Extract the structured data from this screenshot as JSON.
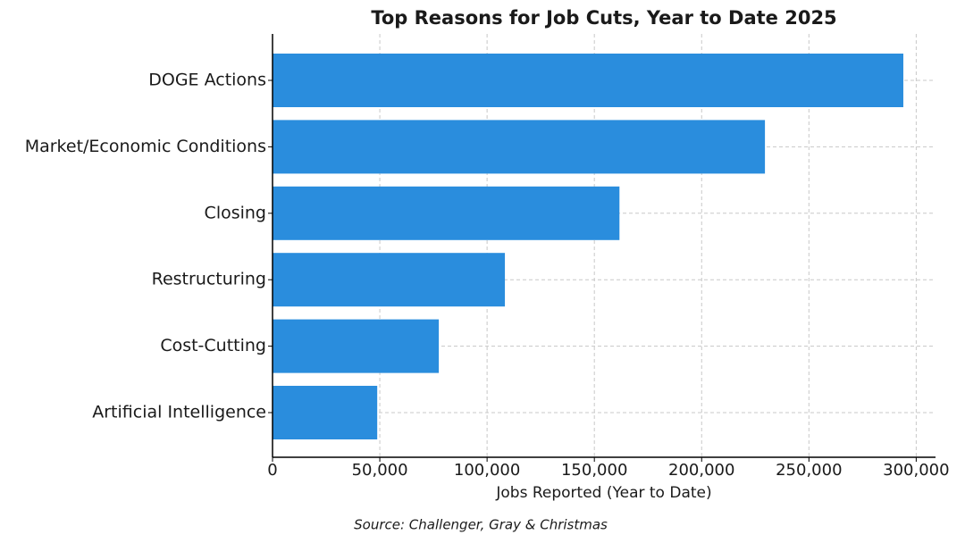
{
  "chart_data": {
    "type": "bar",
    "orientation": "horizontal",
    "title": "Top Reasons for Job Cuts, Year to Date 2025",
    "x_label": "Jobs Reported (Year to Date)",
    "source": "Source: Challenger, Gray & Christmas",
    "categories": [
      "DOGE Actions",
      "Market/Economic Conditions",
      "Closing",
      "Restructuring",
      "Cost-Cutting",
      "Artificial Intelligence"
    ],
    "values": [
      294000,
      229500,
      161700,
      108300,
      77500,
      48800
    ],
    "color": "#2a8ddd",
    "xlim": [
      0,
      309000
    ],
    "xticks": [
      0,
      {
        "value": 50000,
        "label": "50,000"
      },
      {
        "value": 100000,
        "label": "100,000"
      },
      {
        "value": 150000,
        "label": "150,000"
      },
      {
        "value": 200000,
        "label": "200,000"
      },
      {
        "value": 250000,
        "label": "250,000"
      },
      {
        "value": 300000,
        "label": "300,000"
      }
    ],
    "grid": true
  }
}
